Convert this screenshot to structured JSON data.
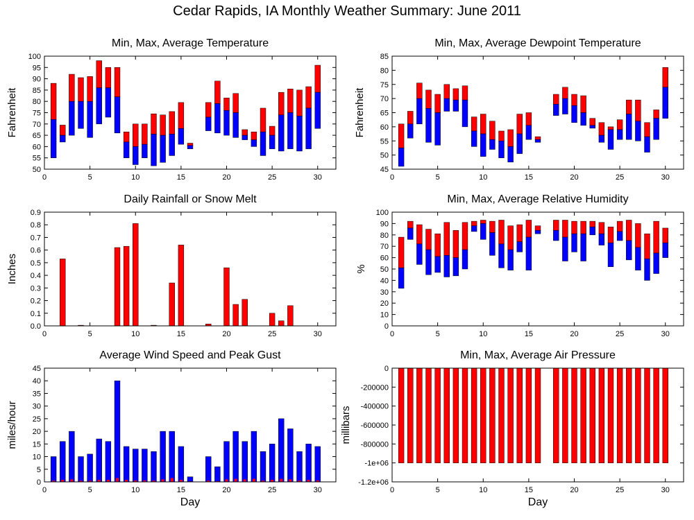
{
  "title": "Cedar Rapids, IA Monthly Weather Summary: June 2011",
  "colors": {
    "max": "#ff0000",
    "min": "#0000ff",
    "outline": "#000000"
  },
  "chart_data": [
    {
      "id": "temp",
      "type": "bar",
      "subtype": "floating-range",
      "title": "Min, Max, Average Temperature",
      "xlabel": "",
      "ylabel": "Fahrenheit",
      "xlim": [
        0,
        32
      ],
      "ylim": [
        50,
        100
      ],
      "xticks": [
        0,
        5,
        10,
        15,
        20,
        25,
        30
      ],
      "yticks": [
        50,
        55,
        60,
        65,
        70,
        75,
        80,
        85,
        90,
        95,
        100
      ],
      "days": [
        1,
        2,
        3,
        4,
        5,
        6,
        7,
        8,
        9,
        10,
        11,
        12,
        13,
        14,
        15,
        16,
        18,
        19,
        20,
        21,
        22,
        23,
        24,
        25,
        26,
        27,
        28,
        29,
        30
      ],
      "min": [
        55,
        62,
        65,
        68,
        64,
        70,
        73,
        66,
        55,
        52,
        55,
        51.5,
        53,
        56,
        61,
        59,
        67,
        66,
        65,
        64,
        63,
        60,
        56,
        59,
        58,
        59,
        58,
        59,
        68
      ],
      "avg": [
        72,
        65,
        80,
        80,
        80,
        86,
        86,
        82,
        62,
        60,
        61,
        65.5,
        65,
        65.5,
        68,
        60.5,
        73,
        79,
        76,
        75,
        65,
        63,
        66.5,
        65,
        74,
        75,
        73.5,
        77,
        84
      ],
      "max": [
        88,
        69.5,
        92,
        90.5,
        91,
        98,
        95,
        95,
        66.5,
        70,
        70,
        74.5,
        74,
        75.5,
        79.5,
        61.5,
        79.5,
        89,
        81.5,
        83.5,
        67.5,
        66.5,
        77,
        69,
        84,
        85.5,
        85,
        86.5,
        96
      ]
    },
    {
      "id": "dewpoint",
      "type": "bar",
      "subtype": "floating-range",
      "title": "Min, Max, Average Dewpoint Temperature",
      "xlabel": "",
      "ylabel": "Fahrenheit",
      "xlim": [
        0,
        32
      ],
      "ylim": [
        45,
        85
      ],
      "xticks": [
        0,
        5,
        10,
        15,
        20,
        25,
        30
      ],
      "yticks": [
        45,
        50,
        55,
        60,
        65,
        70,
        75,
        80,
        85
      ],
      "days": [
        1,
        2,
        3,
        4,
        5,
        6,
        7,
        8,
        9,
        10,
        11,
        12,
        13,
        14,
        15,
        16,
        18,
        19,
        20,
        21,
        22,
        23,
        24,
        25,
        26,
        27,
        28,
        29,
        30
      ],
      "min": [
        46,
        56,
        61,
        54.5,
        53.5,
        65.5,
        65.5,
        60,
        53,
        49.5,
        52,
        49,
        47.5,
        50.5,
        55.5,
        54.5,
        64,
        64.5,
        61.5,
        60.5,
        59.5,
        54.5,
        52,
        55.5,
        55.5,
        55,
        51,
        55.5,
        63
      ],
      "avg": [
        52.5,
        61,
        70,
        66.5,
        65,
        70,
        69.5,
        69.5,
        58.5,
        57.5,
        55.5,
        55,
        53,
        57.5,
        60.5,
        55.5,
        68,
        70,
        67.5,
        65,
        60.5,
        57,
        59,
        59,
        64.5,
        62,
        56.5,
        63,
        74
      ],
      "max": [
        61,
        65.5,
        75.5,
        73,
        71.5,
        75,
        73.5,
        74.5,
        63.5,
        64.5,
        62,
        58.5,
        59,
        64.5,
        65,
        56.5,
        71.5,
        74,
        71.5,
        71,
        63,
        61.5,
        60,
        62.5,
        69.5,
        69.5,
        61.5,
        66,
        81
      ]
    },
    {
      "id": "rain",
      "type": "bar",
      "title": "Daily Rainfall or Snow Melt",
      "xlabel": "",
      "ylabel": "Inches",
      "xlim": [
        0,
        32
      ],
      "ylim": [
        0,
        0.9
      ],
      "xticks": [
        0,
        5,
        10,
        15,
        20,
        25,
        30
      ],
      "yticks": [
        0.0,
        0.1,
        0.2,
        0.3,
        0.4,
        0.5,
        0.6,
        0.7,
        0.8,
        0.9
      ],
      "ytick_labels": [
        "0.0",
        "0.1",
        "0.2",
        "0.3",
        "0.4",
        "0.5",
        "0.6",
        "0.7",
        "0.8",
        "0.9"
      ],
      "days": [
        2,
        4,
        8,
        9,
        10,
        12,
        14,
        15,
        18,
        20,
        21,
        22,
        25,
        26,
        27
      ],
      "values": [
        0.53,
        0.005,
        0.62,
        0.63,
        0.81,
        0.005,
        0.34,
        0.64,
        0.015,
        0.46,
        0.17,
        0.21,
        0.1,
        0.04,
        0.16
      ]
    },
    {
      "id": "humidity",
      "type": "bar",
      "subtype": "floating-range",
      "title": "Min, Max, Average Relative Humidity",
      "xlabel": "",
      "ylabel": "%",
      "xlim": [
        0,
        32
      ],
      "ylim": [
        0,
        100
      ],
      "xticks": [
        0,
        5,
        10,
        15,
        20,
        25,
        30
      ],
      "yticks": [
        0,
        10,
        20,
        30,
        40,
        50,
        60,
        70,
        80,
        90,
        100
      ],
      "days": [
        1,
        2,
        3,
        4,
        5,
        6,
        7,
        8,
        9,
        10,
        11,
        12,
        13,
        14,
        15,
        16,
        18,
        19,
        20,
        21,
        22,
        23,
        24,
        25,
        26,
        27,
        28,
        29,
        30
      ],
      "min": [
        33,
        76,
        54,
        45,
        47,
        43,
        44,
        50,
        83,
        76,
        62,
        51,
        49,
        65,
        49,
        81,
        75,
        57,
        65,
        57,
        80,
        71,
        52,
        75,
        58,
        49,
        40,
        46,
        60
      ],
      "avg": [
        51,
        86,
        72,
        67,
        61,
        62,
        60,
        67,
        88,
        90,
        82,
        72,
        67,
        74,
        78,
        84,
        84,
        78,
        81,
        81,
        87,
        81,
        73,
        83,
        75,
        69,
        59,
        64,
        73
      ],
      "max": [
        78,
        92,
        89,
        85,
        81,
        91,
        84,
        91,
        92,
        93,
        92,
        93,
        88,
        89,
        93,
        88,
        93,
        93,
        92,
        92,
        92,
        91,
        87,
        92,
        93,
        90,
        81,
        92,
        86
      ]
    },
    {
      "id": "wind",
      "type": "bar",
      "title": "Average Wind Speed and Peak Gust",
      "xlabel": "Day",
      "ylabel": "miles/hour",
      "xlim": [
        0,
        32
      ],
      "ylim": [
        0,
        45
      ],
      "xticks": [
        0,
        5,
        10,
        15,
        20,
        25,
        30
      ],
      "yticks": [
        0,
        5,
        10,
        15,
        20,
        25,
        30,
        35,
        40,
        45
      ],
      "days": [
        1,
        2,
        3,
        4,
        5,
        6,
        7,
        8,
        9,
        10,
        11,
        12,
        13,
        14,
        15,
        16,
        18,
        19,
        20,
        21,
        22,
        23,
        24,
        25,
        26,
        27,
        28,
        29,
        30
      ],
      "series": [
        {
          "name": "",
          "color": "#0000ff",
          "values": [
            10,
            16,
            20,
            10,
            11,
            17,
            16,
            40,
            14,
            13,
            13,
            12,
            20,
            20,
            14,
            2,
            10,
            6,
            16,
            20,
            16,
            20,
            12,
            15,
            25,
            21,
            12,
            15,
            14
          ]
        },
        {
          "name": "",
          "color": "#ff0000",
          "values": [
            0.5,
            0.8,
            1,
            0.5,
            0.5,
            0.8,
            0.8,
            1.5,
            0.8,
            0.6,
            0.6,
            0.5,
            1,
            1.5,
            0.8,
            0.2,
            0.5,
            0.3,
            1,
            1.2,
            1,
            1.2,
            0.5,
            0.8,
            1.2,
            1,
            0.5,
            0.8,
            0.6
          ]
        }
      ]
    },
    {
      "id": "pressure",
      "type": "bar",
      "title": "Min, Max, Average Air Pressure",
      "xlabel": "Day",
      "ylabel": "millibars",
      "xlim": [
        0,
        32
      ],
      "ylim": [
        -1200000,
        0
      ],
      "xticks": [
        0,
        5,
        10,
        15,
        20,
        25,
        30
      ],
      "yticks": [
        0,
        -200000,
        -400000,
        -600000,
        -800000,
        -1000000,
        -1200000
      ],
      "ytick_labels": [
        "0",
        "-200000",
        "-400000",
        "-600000",
        "-800000",
        "-1e+06",
        "-1.2e+06"
      ],
      "days": [
        1,
        2,
        3,
        4,
        5,
        6,
        7,
        8,
        9,
        10,
        11,
        12,
        13,
        14,
        15,
        16,
        18,
        19,
        20,
        21,
        22,
        23,
        24,
        25,
        26,
        27,
        28,
        29,
        30
      ],
      "min": [
        -1000000,
        -1000000,
        -1000000,
        -1000000,
        -1000000,
        -1000000,
        -1000000,
        -1000000,
        -1000000,
        -1000000,
        -1000000,
        -1000000,
        -1000000,
        -1000000,
        -1000000,
        -1000000,
        -1000000,
        -1000000,
        -1000000,
        -1000000,
        -1000000,
        -1000000,
        -1000000,
        -1000000,
        -1000000,
        -1000000,
        -1000000,
        -1000000,
        -1000000
      ],
      "max": [
        0,
        0,
        0,
        0,
        0,
        0,
        0,
        0,
        0,
        0,
        0,
        0,
        0,
        0,
        0,
        0,
        0,
        0,
        0,
        0,
        0,
        0,
        0,
        0,
        0,
        0,
        0,
        0,
        0
      ]
    }
  ]
}
